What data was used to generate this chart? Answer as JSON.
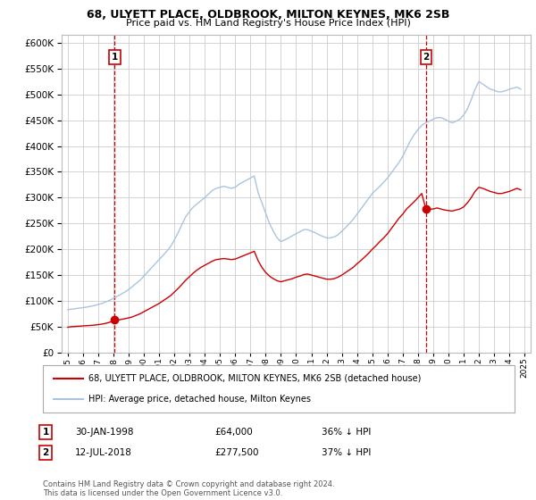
{
  "title_line1": "68, ULYETT PLACE, OLDBROOK, MILTON KEYNES, MK6 2SB",
  "title_line2": "Price paid vs. HM Land Registry's House Price Index (HPI)",
  "yticks": [
    0,
    50000,
    100000,
    150000,
    200000,
    250000,
    300000,
    350000,
    400000,
    450000,
    500000,
    550000,
    600000
  ],
  "ylim": [
    0,
    615000
  ],
  "xlim_start": 1994.6,
  "xlim_end": 2025.4,
  "sale1_x": 1998.08,
  "sale1_y": 64000,
  "sale2_x": 2018.55,
  "sale2_y": 277500,
  "hpi_color": "#aac4e0",
  "sale_color": "#cc0000",
  "legend_line1": "68, ULYETT PLACE, OLDBROOK, MILTON KEYNES, MK6 2SB (detached house)",
  "legend_line2": "HPI: Average price, detached house, Milton Keynes",
  "sale1_date": "30-JAN-1998",
  "sale1_price": "£64,000",
  "sale1_hpi_text": "36% ↓ HPI",
  "sale2_date": "12-JUL-2018",
  "sale2_price": "£277,500",
  "sale2_hpi_text": "37% ↓ HPI",
  "footnote": "Contains HM Land Registry data © Crown copyright and database right 2024.\nThis data is licensed under the Open Government Licence v3.0.",
  "background_color": "#ffffff",
  "grid_color": "#cccccc",
  "hpi_years": [
    1995,
    1995.25,
    1995.5,
    1995.75,
    1996,
    1996.25,
    1996.5,
    1996.75,
    1997,
    1997.25,
    1997.5,
    1997.75,
    1998,
    1998.25,
    1998.5,
    1998.75,
    1999,
    1999.25,
    1999.5,
    1999.75,
    2000,
    2000.25,
    2000.5,
    2000.75,
    2001,
    2001.25,
    2001.5,
    2001.75,
    2002,
    2002.25,
    2002.5,
    2002.75,
    2003,
    2003.25,
    2003.5,
    2003.75,
    2004,
    2004.25,
    2004.5,
    2004.75,
    2005,
    2005.25,
    2005.5,
    2005.75,
    2006,
    2006.25,
    2006.5,
    2006.75,
    2007,
    2007.25,
    2007.5,
    2007.75,
    2008,
    2008.25,
    2008.5,
    2008.75,
    2009,
    2009.25,
    2009.5,
    2009.75,
    2010,
    2010.25,
    2010.5,
    2010.75,
    2011,
    2011.25,
    2011.5,
    2011.75,
    2012,
    2012.25,
    2012.5,
    2012.75,
    2013,
    2013.25,
    2013.5,
    2013.75,
    2014,
    2014.25,
    2014.5,
    2014.75,
    2015,
    2015.25,
    2015.5,
    2015.75,
    2016,
    2016.25,
    2016.5,
    2016.75,
    2017,
    2017.25,
    2017.5,
    2017.75,
    2018,
    2018.25,
    2018.5,
    2018.75,
    2019,
    2019.25,
    2019.5,
    2019.75,
    2020,
    2020.25,
    2020.5,
    2020.75,
    2021,
    2021.25,
    2021.5,
    2021.75,
    2022,
    2022.25,
    2022.5,
    2022.75,
    2023,
    2023.25,
    2023.5,
    2023.75,
    2024,
    2024.25,
    2024.5,
    2024.75
  ],
  "hpi_vals": [
    83000,
    84000,
    85000,
    86000,
    87000,
    88000,
    89500,
    91000,
    93000,
    95000,
    98000,
    101000,
    105000,
    109000,
    113000,
    117000,
    122000,
    128000,
    134000,
    140000,
    148000,
    156000,
    164000,
    172000,
    180000,
    188000,
    196000,
    205000,
    218000,
    232000,
    248000,
    263000,
    273000,
    282000,
    288000,
    294000,
    300000,
    307000,
    314000,
    318000,
    320000,
    322000,
    320000,
    318000,
    320000,
    326000,
    330000,
    334000,
    338000,
    342000,
    310000,
    290000,
    270000,
    250000,
    235000,
    222000,
    215000,
    218000,
    222000,
    226000,
    230000,
    234000,
    238000,
    238000,
    235000,
    232000,
    228000,
    225000,
    222000,
    222000,
    224000,
    228000,
    235000,
    242000,
    250000,
    258000,
    268000,
    278000,
    288000,
    298000,
    308000,
    315000,
    322000,
    330000,
    338000,
    348000,
    358000,
    368000,
    380000,
    395000,
    410000,
    422000,
    432000,
    440000,
    445000,
    448000,
    452000,
    455000,
    455000,
    452000,
    448000,
    445000,
    448000,
    452000,
    460000,
    472000,
    490000,
    510000,
    525000,
    520000,
    515000,
    510000,
    508000,
    505000,
    505000,
    507000,
    510000,
    512000,
    514000,
    510000
  ],
  "red_vals": [
    49000,
    50000,
    50500,
    51000,
    51500,
    52000,
    52500,
    53000,
    54000,
    55000,
    56500,
    58500,
    61000,
    62500,
    64000,
    65500,
    67000,
    69000,
    72000,
    75000,
    79000,
    83000,
    87000,
    91000,
    95000,
    100000,
    105000,
    110000,
    117000,
    124000,
    132000,
    140000,
    147000,
    154000,
    160000,
    165000,
    169000,
    173000,
    177000,
    180000,
    181000,
    182000,
    181000,
    180000,
    181000,
    184000,
    187000,
    190000,
    193000,
    196000,
    178000,
    165000,
    155000,
    148000,
    143000,
    139000,
    137000,
    139000,
    141000,
    143000,
    146000,
    148000,
    151000,
    152000,
    150000,
    148000,
    146000,
    144000,
    142000,
    142000,
    143000,
    146000,
    150000,
    155000,
    160000,
    165000,
    172000,
    178000,
    185000,
    192000,
    200000,
    207000,
    215000,
    222000,
    230000,
    240000,
    250000,
    260000,
    268000,
    278000,
    285000,
    292000,
    300000,
    308000,
    280000,
    277500,
    278000,
    280000,
    278000,
    276000,
    275000,
    274000,
    276000,
    278000,
    282000,
    290000,
    300000,
    312000,
    320000,
    318000,
    315000,
    312000,
    310000,
    308000,
    308000,
    310000,
    312000,
    315000,
    318000,
    315000
  ]
}
